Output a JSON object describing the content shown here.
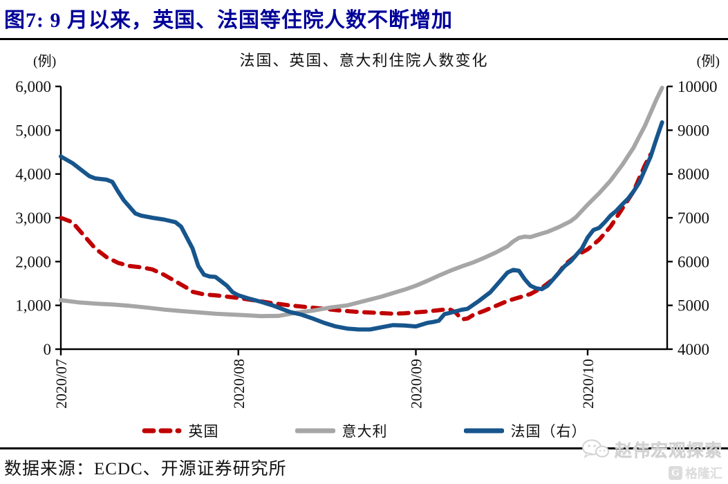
{
  "header": {
    "title": "图7:  9 月以来，英国、法国等住院人数不断增加"
  },
  "chart": {
    "title": "法国、英国、意大利住院人数变化",
    "unit_left": "(例)",
    "unit_right": "(例)"
  },
  "chart_data": {
    "type": "line",
    "title": "法国、英国、意大利住院人数变化",
    "x_axis": {
      "tick_labels": [
        "2020/07",
        "2020/08",
        "2020/09",
        "2020/10"
      ],
      "tick_days": [
        0,
        31,
        62,
        92
      ],
      "domain_days": [
        0,
        105.5
      ]
    },
    "left_axis": {
      "unit": "(例)",
      "min": 0,
      "max": 6000,
      "step": 1000,
      "tick_labels": [
        "0",
        "1,000",
        "2,000",
        "3,000",
        "4,000",
        "5,000",
        "6,000"
      ]
    },
    "right_axis": {
      "unit": "(例)",
      "min": 4000,
      "max": 10000,
      "step": 1000,
      "tick_labels": [
        "4000",
        "5000",
        "6000",
        "7000",
        "8000",
        "9000",
        "10000"
      ]
    },
    "series": [
      {
        "name": "英国",
        "axis": "left",
        "color": "#C00000",
        "style": "dashed",
        "points": [
          [
            0,
            3000
          ],
          [
            2,
            2900
          ],
          [
            4,
            2600
          ],
          [
            6,
            2300
          ],
          [
            8,
            2100
          ],
          [
            10,
            1970
          ],
          [
            12,
            1900
          ],
          [
            14,
            1870
          ],
          [
            16,
            1820
          ],
          [
            18,
            1700
          ],
          [
            20,
            1550
          ],
          [
            22,
            1400
          ],
          [
            23,
            1310
          ],
          [
            25,
            1250
          ],
          [
            27,
            1230
          ],
          [
            29,
            1200
          ],
          [
            31,
            1170
          ],
          [
            34,
            1110
          ],
          [
            37,
            1050
          ],
          [
            40,
            1000
          ],
          [
            43,
            960
          ],
          [
            46,
            920
          ],
          [
            49,
            880
          ],
          [
            52,
            850
          ],
          [
            55,
            830
          ],
          [
            58,
            810
          ],
          [
            60,
            820
          ],
          [
            62,
            840
          ],
          [
            64,
            860
          ],
          [
            66,
            890
          ],
          [
            67,
            905
          ],
          [
            68,
            905
          ],
          [
            69,
            830
          ],
          [
            70,
            680
          ],
          [
            71,
            700
          ],
          [
            72,
            780
          ],
          [
            74,
            880
          ],
          [
            76,
            990
          ],
          [
            78,
            1100
          ],
          [
            80,
            1180
          ],
          [
            82,
            1260
          ],
          [
            84,
            1400
          ],
          [
            86,
            1600
          ],
          [
            87,
            1750
          ],
          [
            88,
            1930
          ],
          [
            90,
            2140
          ],
          [
            92,
            2280
          ],
          [
            94,
            2500
          ],
          [
            96,
            2800
          ],
          [
            98,
            3200
          ],
          [
            100,
            3600
          ],
          [
            101,
            3900
          ],
          [
            102,
            4200
          ],
          [
            103,
            4450
          ]
        ]
      },
      {
        "name": "意大利",
        "axis": "left",
        "color": "#A6A6A6",
        "style": "solid",
        "points": [
          [
            0,
            1120
          ],
          [
            3,
            1070
          ],
          [
            6,
            1040
          ],
          [
            9,
            1020
          ],
          [
            12,
            990
          ],
          [
            15,
            950
          ],
          [
            18,
            905
          ],
          [
            21,
            870
          ],
          [
            24,
            840
          ],
          [
            27,
            810
          ],
          [
            30,
            790
          ],
          [
            33,
            770
          ],
          [
            35,
            755
          ],
          [
            38,
            760
          ],
          [
            41,
            830
          ],
          [
            44,
            880
          ],
          [
            47,
            950
          ],
          [
            50,
            1000
          ],
          [
            53,
            1100
          ],
          [
            56,
            1200
          ],
          [
            58,
            1280
          ],
          [
            60,
            1360
          ],
          [
            62,
            1450
          ],
          [
            64,
            1560
          ],
          [
            66,
            1680
          ],
          [
            68,
            1790
          ],
          [
            70,
            1890
          ],
          [
            72,
            1980
          ],
          [
            74,
            2090
          ],
          [
            76,
            2210
          ],
          [
            78,
            2350
          ],
          [
            79,
            2460
          ],
          [
            80,
            2540
          ],
          [
            81,
            2570
          ],
          [
            82,
            2560
          ],
          [
            83,
            2600
          ],
          [
            85,
            2680
          ],
          [
            87,
            2790
          ],
          [
            89,
            2920
          ],
          [
            90,
            3020
          ],
          [
            92,
            3300
          ],
          [
            94,
            3560
          ],
          [
            96,
            3850
          ],
          [
            98,
            4200
          ],
          [
            99,
            4400
          ],
          [
            100,
            4600
          ],
          [
            101,
            4850
          ],
          [
            102,
            5100
          ],
          [
            103,
            5400
          ],
          [
            104,
            5700
          ],
          [
            105,
            5970
          ]
        ]
      },
      {
        "name": "法国（右）",
        "axis": "right",
        "color": "#17558C",
        "style": "solid",
        "points": [
          [
            0,
            8400
          ],
          [
            2,
            8250
          ],
          [
            4,
            8050
          ],
          [
            5,
            7950
          ],
          [
            6,
            7900
          ],
          [
            8,
            7870
          ],
          [
            9,
            7820
          ],
          [
            10,
            7600
          ],
          [
            11,
            7400
          ],
          [
            12,
            7250
          ],
          [
            13,
            7100
          ],
          [
            14,
            7050
          ],
          [
            16,
            7000
          ],
          [
            18,
            6960
          ],
          [
            20,
            6900
          ],
          [
            21,
            6800
          ],
          [
            22,
            6550
          ],
          [
            23,
            6300
          ],
          [
            24,
            5900
          ],
          [
            25,
            5700
          ],
          [
            26,
            5660
          ],
          [
            27,
            5650
          ],
          [
            28,
            5550
          ],
          [
            29,
            5450
          ],
          [
            30,
            5300
          ],
          [
            31,
            5230
          ],
          [
            33,
            5150
          ],
          [
            35,
            5080
          ],
          [
            37,
            5000
          ],
          [
            40,
            4850
          ],
          [
            42,
            4790
          ],
          [
            44,
            4700
          ],
          [
            46,
            4600
          ],
          [
            48,
            4520
          ],
          [
            50,
            4470
          ],
          [
            52,
            4450
          ],
          [
            54,
            4450
          ],
          [
            56,
            4500
          ],
          [
            58,
            4550
          ],
          [
            60,
            4540
          ],
          [
            62,
            4520
          ],
          [
            64,
            4600
          ],
          [
            65,
            4620
          ],
          [
            66,
            4650
          ],
          [
            67,
            4800
          ],
          [
            68,
            4830
          ],
          [
            70,
            4900
          ],
          [
            71,
            4920
          ],
          [
            73,
            5100
          ],
          [
            75,
            5300
          ],
          [
            76,
            5450
          ],
          [
            77,
            5600
          ],
          [
            78,
            5750
          ],
          [
            79,
            5810
          ],
          [
            80,
            5790
          ],
          [
            81,
            5600
          ],
          [
            82,
            5450
          ],
          [
            83,
            5390
          ],
          [
            84,
            5370
          ],
          [
            85,
            5450
          ],
          [
            86,
            5600
          ],
          [
            87,
            5750
          ],
          [
            88,
            5900
          ],
          [
            89,
            6000
          ],
          [
            90,
            6150
          ],
          [
            91,
            6300
          ],
          [
            92,
            6550
          ],
          [
            93,
            6720
          ],
          [
            94,
            6770
          ],
          [
            95,
            6900
          ],
          [
            96,
            7050
          ],
          [
            97,
            7160
          ],
          [
            98,
            7300
          ],
          [
            99,
            7430
          ],
          [
            100,
            7600
          ],
          [
            101,
            7800
          ],
          [
            102,
            8100
          ],
          [
            103,
            8400
          ],
          [
            104,
            8800
          ],
          [
            105,
            9180
          ]
        ]
      }
    ],
    "legend_position": "bottom",
    "grid": false
  },
  "footer": {
    "source": "数据来源：ECDC、开源证券研究所"
  },
  "watermark": {
    "line1": "赵伟宏观探索",
    "line2": "格隆汇"
  }
}
